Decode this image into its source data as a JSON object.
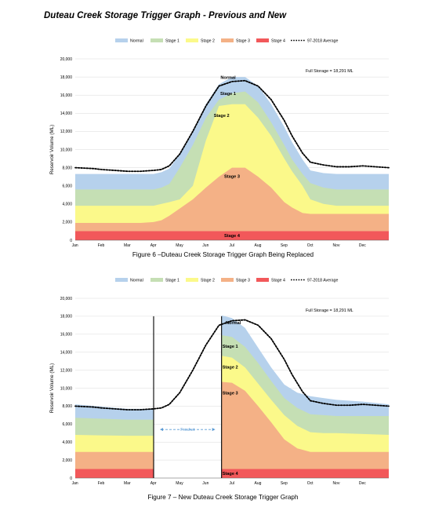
{
  "document": {
    "title": "Duteau Creek Storage Trigger Graph - Previous and New"
  },
  "figures": [
    {
      "caption": "Figure 6 –Duteau Creek Storage Trigger Graph Being Replaced"
    },
    {
      "caption": "Figure 7 – New Duteau Creek Storage Trigger Graph"
    }
  ],
  "colors": {
    "normal": "#b6d1ec",
    "stage1": "#c5dfb4",
    "stage2": "#fbf98a",
    "stage3": "#f4b186",
    "stage4": "#f2585a",
    "average": "#000000"
  },
  "chart_data": [
    {
      "type": "area",
      "title": "",
      "xlabel": "",
      "ylabel": "Reservoir Volume (ML)",
      "ylim": [
        0,
        20000
      ],
      "yticks": [
        "0",
        "2,000",
        "4,000",
        "6,000",
        "8,000",
        "10,000",
        "12,000",
        "14,000",
        "16,000",
        "18,000",
        "20,000"
      ],
      "categories": [
        "Jan",
        "Feb",
        "Mar",
        "Apr",
        "May",
        "Jun",
        "Jul",
        "Aug",
        "Sep",
        "Oct",
        "Nov",
        "Dec"
      ],
      "x": [
        0,
        0.7,
        1,
        1.5,
        2,
        2.5,
        3,
        3.3,
        3.6,
        4,
        4.5,
        5,
        5.5,
        6,
        6.5,
        7,
        7.5,
        8,
        8.3,
        8.7,
        9,
        9.5,
        10,
        10.5,
        11,
        11.5,
        12
      ],
      "legend_position": "top",
      "annotation": "Full Storage  = 18,291 ML",
      "region_labels": [
        "Normal",
        "Stage 1",
        "Stage 2",
        "Stage 3",
        "Stage 4"
      ],
      "series": [
        {
          "name": "Stage 4",
          "values": [
            1000,
            1000,
            1000,
            1000,
            1000,
            1000,
            1000,
            1000,
            1000,
            1000,
            1000,
            1000,
            1000,
            1000,
            1000,
            1000,
            1000,
            1000,
            1000,
            1000,
            1000,
            1000,
            1000,
            1000,
            1000,
            1000,
            1000
          ]
        },
        {
          "name": "Stage 3",
          "values": [
            1900,
            1900,
            1900,
            1900,
            1900,
            1900,
            2000,
            2200,
            2700,
            3500,
            4500,
            5800,
            7000,
            8000,
            8000,
            7000,
            5800,
            4200,
            3600,
            3000,
            2900,
            2900,
            2900,
            2900,
            2900,
            2900,
            2900
          ]
        },
        {
          "name": "Stage 2",
          "values": [
            3800,
            3800,
            3800,
            3800,
            3800,
            3800,
            3800,
            4000,
            4200,
            4500,
            6000,
            11000,
            14800,
            15000,
            15000,
            13500,
            11500,
            9000,
            7600,
            6000,
            4500,
            4000,
            3800,
            3800,
            3800,
            3800,
            3800
          ]
        },
        {
          "name": "Stage 1",
          "values": [
            5600,
            5600,
            5600,
            5600,
            5600,
            5600,
            5600,
            5800,
            6200,
            8000,
            10500,
            13500,
            15500,
            16200,
            16400,
            15200,
            13000,
            10500,
            8900,
            7300,
            6300,
            5800,
            5600,
            5600,
            5600,
            5600,
            5600
          ]
        },
        {
          "name": "Normal",
          "values": [
            7300,
            7300,
            7300,
            7300,
            7300,
            7300,
            7300,
            7500,
            7900,
            9500,
            12000,
            15000,
            17200,
            18000,
            18000,
            17000,
            15000,
            12500,
            10800,
            8900,
            7700,
            7400,
            7300,
            7300,
            7300,
            7300,
            7300
          ]
        },
        {
          "name": "97-2018 Average",
          "values": [
            8000,
            7900,
            7800,
            7700,
            7600,
            7600,
            7700,
            7800,
            8200,
            9500,
            12000,
            14800,
            17000,
            17500,
            17600,
            17000,
            15500,
            13200,
            11500,
            9600,
            8600,
            8300,
            8100,
            8100,
            8200,
            8100,
            8000
          ]
        }
      ]
    },
    {
      "type": "area",
      "title": "",
      "xlabel": "",
      "ylabel": "Reservoir Volume (ML)",
      "ylim": [
        0,
        20000
      ],
      "yticks": [
        "0",
        "2,000",
        "4,000",
        "6,000",
        "8,000",
        "10,000",
        "12,000",
        "14,000",
        "16,000",
        "18,000",
        "20,000"
      ],
      "categories": [
        "Jan",
        "Feb",
        "Mar",
        "Apr",
        "May",
        "Jun",
        "Jul",
        "Aug",
        "Sep",
        "Oct",
        "Nov",
        "Dec"
      ],
      "legend_position": "top",
      "annotation": "Full Storage  = 18,291 ML",
      "freshet_label": "Freshet",
      "freshet_x": [
        3,
        5.6
      ],
      "region_labels": [
        "Normal",
        "Stage 1",
        "Stage 2",
        "Stage 3",
        "Stage 4"
      ],
      "left_x": [
        0,
        1,
        2,
        3
      ],
      "left_series": [
        {
          "name": "Stage 4",
          "values": [
            1000,
            1000,
            1000,
            1000
          ]
        },
        {
          "name": "Stage 3",
          "values": [
            2900,
            2900,
            2900,
            2900
          ]
        },
        {
          "name": "Stage 2",
          "values": [
            4800,
            4750,
            4700,
            4700
          ]
        },
        {
          "name": "Stage 1",
          "values": [
            6700,
            6600,
            6500,
            6500
          ]
        },
        {
          "name": "Normal",
          "values": [
            8200,
            7950,
            7700,
            7700
          ]
        }
      ],
      "right_x": [
        5.6,
        6,
        6.5,
        7,
        7.5,
        8,
        8.5,
        9,
        9.5,
        10,
        11,
        12
      ],
      "right_series": [
        {
          "name": "Stage 4",
          "values": [
            1000,
            1000,
            1000,
            1000,
            1000,
            1000,
            1000,
            1000,
            1000,
            1000,
            1000,
            1000
          ]
        },
        {
          "name": "Stage 3",
          "values": [
            10700,
            10600,
            9700,
            8000,
            6200,
            4300,
            3300,
            2900,
            2900,
            2900,
            2900,
            2900
          ]
        },
        {
          "name": "Stage 2",
          "values": [
            13600,
            13400,
            12300,
            10500,
            8700,
            7000,
            5800,
            5100,
            5000,
            5000,
            4900,
            4800
          ]
        },
        {
          "name": "Stage 1",
          "values": [
            15900,
            15700,
            14600,
            12800,
            10800,
            8900,
            7800,
            7100,
            7000,
            6900,
            6900,
            6900
          ]
        },
        {
          "name": "Normal",
          "values": [
            18100,
            17800,
            16700,
            14500,
            12300,
            10400,
            9500,
            9100,
            8900,
            8700,
            8500,
            8200
          ]
        }
      ],
      "average": {
        "name": "97-2018 Average",
        "x": [
          0,
          0.7,
          1,
          1.5,
          2,
          2.5,
          3,
          3.3,
          3.6,
          4,
          4.5,
          5,
          5.5,
          6,
          6.5,
          7,
          7.5,
          8,
          8.3,
          8.7,
          9,
          9.5,
          10,
          10.5,
          11,
          11.5,
          12
        ],
        "values": [
          8000,
          7900,
          7800,
          7700,
          7600,
          7600,
          7700,
          7800,
          8200,
          9500,
          12000,
          14800,
          17000,
          17500,
          17600,
          17000,
          15500,
          13200,
          11500,
          9600,
          8600,
          8300,
          8100,
          8100,
          8200,
          8100,
          8000
        ]
      }
    }
  ]
}
